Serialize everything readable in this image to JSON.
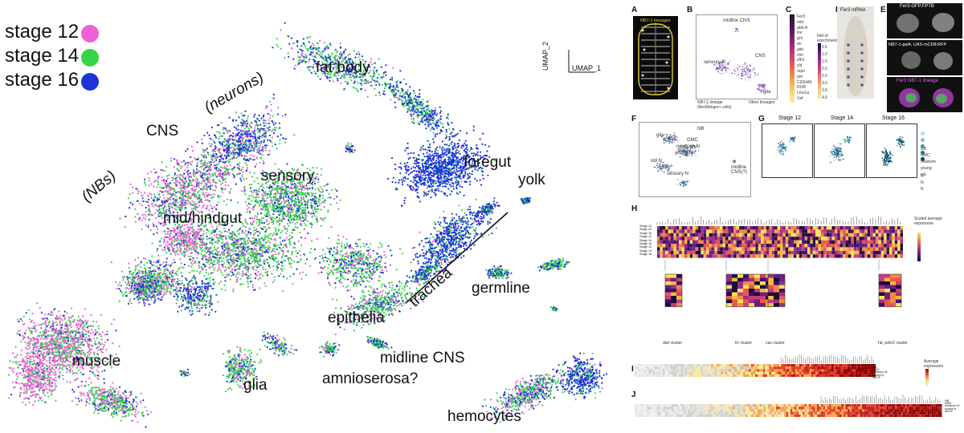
{
  "legend": [
    {
      "label": "stage 12",
      "color": "#ef5fd6"
    },
    {
      "label": "stage 14",
      "color": "#35d54a"
    },
    {
      "label": "stage 16",
      "color": "#1a34d8"
    }
  ],
  "umap_axes": {
    "y": "UMAP_2",
    "x": "UMAP_1"
  },
  "clusters": {
    "fat_body": "fat body",
    "neurons": "(neurons)",
    "cns": "CNS",
    "nbs": "(NBs)",
    "sensory": "sensory",
    "foregut": "foregut",
    "yolk": "yolk",
    "midhindgut": "mid/hindgut",
    "trachea": "trachea",
    "germline": "germline",
    "epithelia": "epithelia",
    "muscle": "muscle",
    "glia": "glia",
    "amnioserosa": "amnioserosa?",
    "midline_cns": "midline CNS",
    "hemocytes": "hemocytes"
  },
  "panels": {
    "A": {
      "letter": "A",
      "title": "NB7-1 lineages"
    },
    "B": {
      "letter": "B",
      "labels": [
        "midline CNS",
        "sensory N",
        "CNS",
        "glia"
      ],
      "legend": [
        "NB7-1 lineage (RedStinger+ cells)",
        "Other lineages"
      ]
    },
    "C": {
      "letter": "C",
      "genes": [
        "Fer3",
        "mid",
        "abd-A",
        "inv",
        "grn",
        "en",
        "gsb",
        "chn",
        "zfh1",
        "zld",
        "repo",
        "pnt",
        "CG5446",
        "DOR",
        "Lmx1a",
        "Usf"
      ],
      "scale_title": "fold of enrichment",
      "ticks": [
        "0.5",
        "1.0",
        "1.5",
        "2.0",
        "2.5",
        "3.0",
        "3.5",
        "4.0"
      ]
    },
    "D": {
      "letter": "D",
      "title": "Fer3 mRNA"
    },
    "E": {
      "letter": "E",
      "titles": [
        "Fer3-GFP.FPTB",
        "NB7-1-gal4, UAS-mCD8:RFP",
        "Fer3 NB7-1 lineage"
      ]
    },
    "F": {
      "letter": "F",
      "labels": [
        "NB",
        "GMC",
        "newborn N",
        "young N",
        "old N",
        "glia",
        "sensory N",
        "midline CNS(?)"
      ]
    },
    "G": {
      "letter": "G",
      "titles": [
        "Stage 12",
        "Stage 14",
        "Stage 16"
      ],
      "legend": [
        "NB",
        "GMC",
        "newborn N",
        "young N",
        "old N"
      ]
    },
    "H": {
      "letter": "H",
      "rows": [
        "Stage 12",
        "Stage 14",
        "Stage 16",
        "Stage 12",
        "Stage 14",
        "Stage 16",
        "Stage 12",
        "Stage 14",
        "Stage 16"
      ],
      "scale_title": "Scaled average expression",
      "clusters": [
        "dati cluster",
        "Kr cluster",
        "cas cluster",
        "hb, pdm2 cluster"
      ]
    },
    "I": {
      "letter": "I",
      "rows": [
        "NB",
        "GMC",
        "newborn N",
        "young N",
        "old N"
      ],
      "scale_title": "Average expression"
    },
    "J": {
      "letter": "J",
      "rows": [
        "NB",
        "GMC",
        "newborn N",
        "young N",
        "old N"
      ]
    }
  }
}
